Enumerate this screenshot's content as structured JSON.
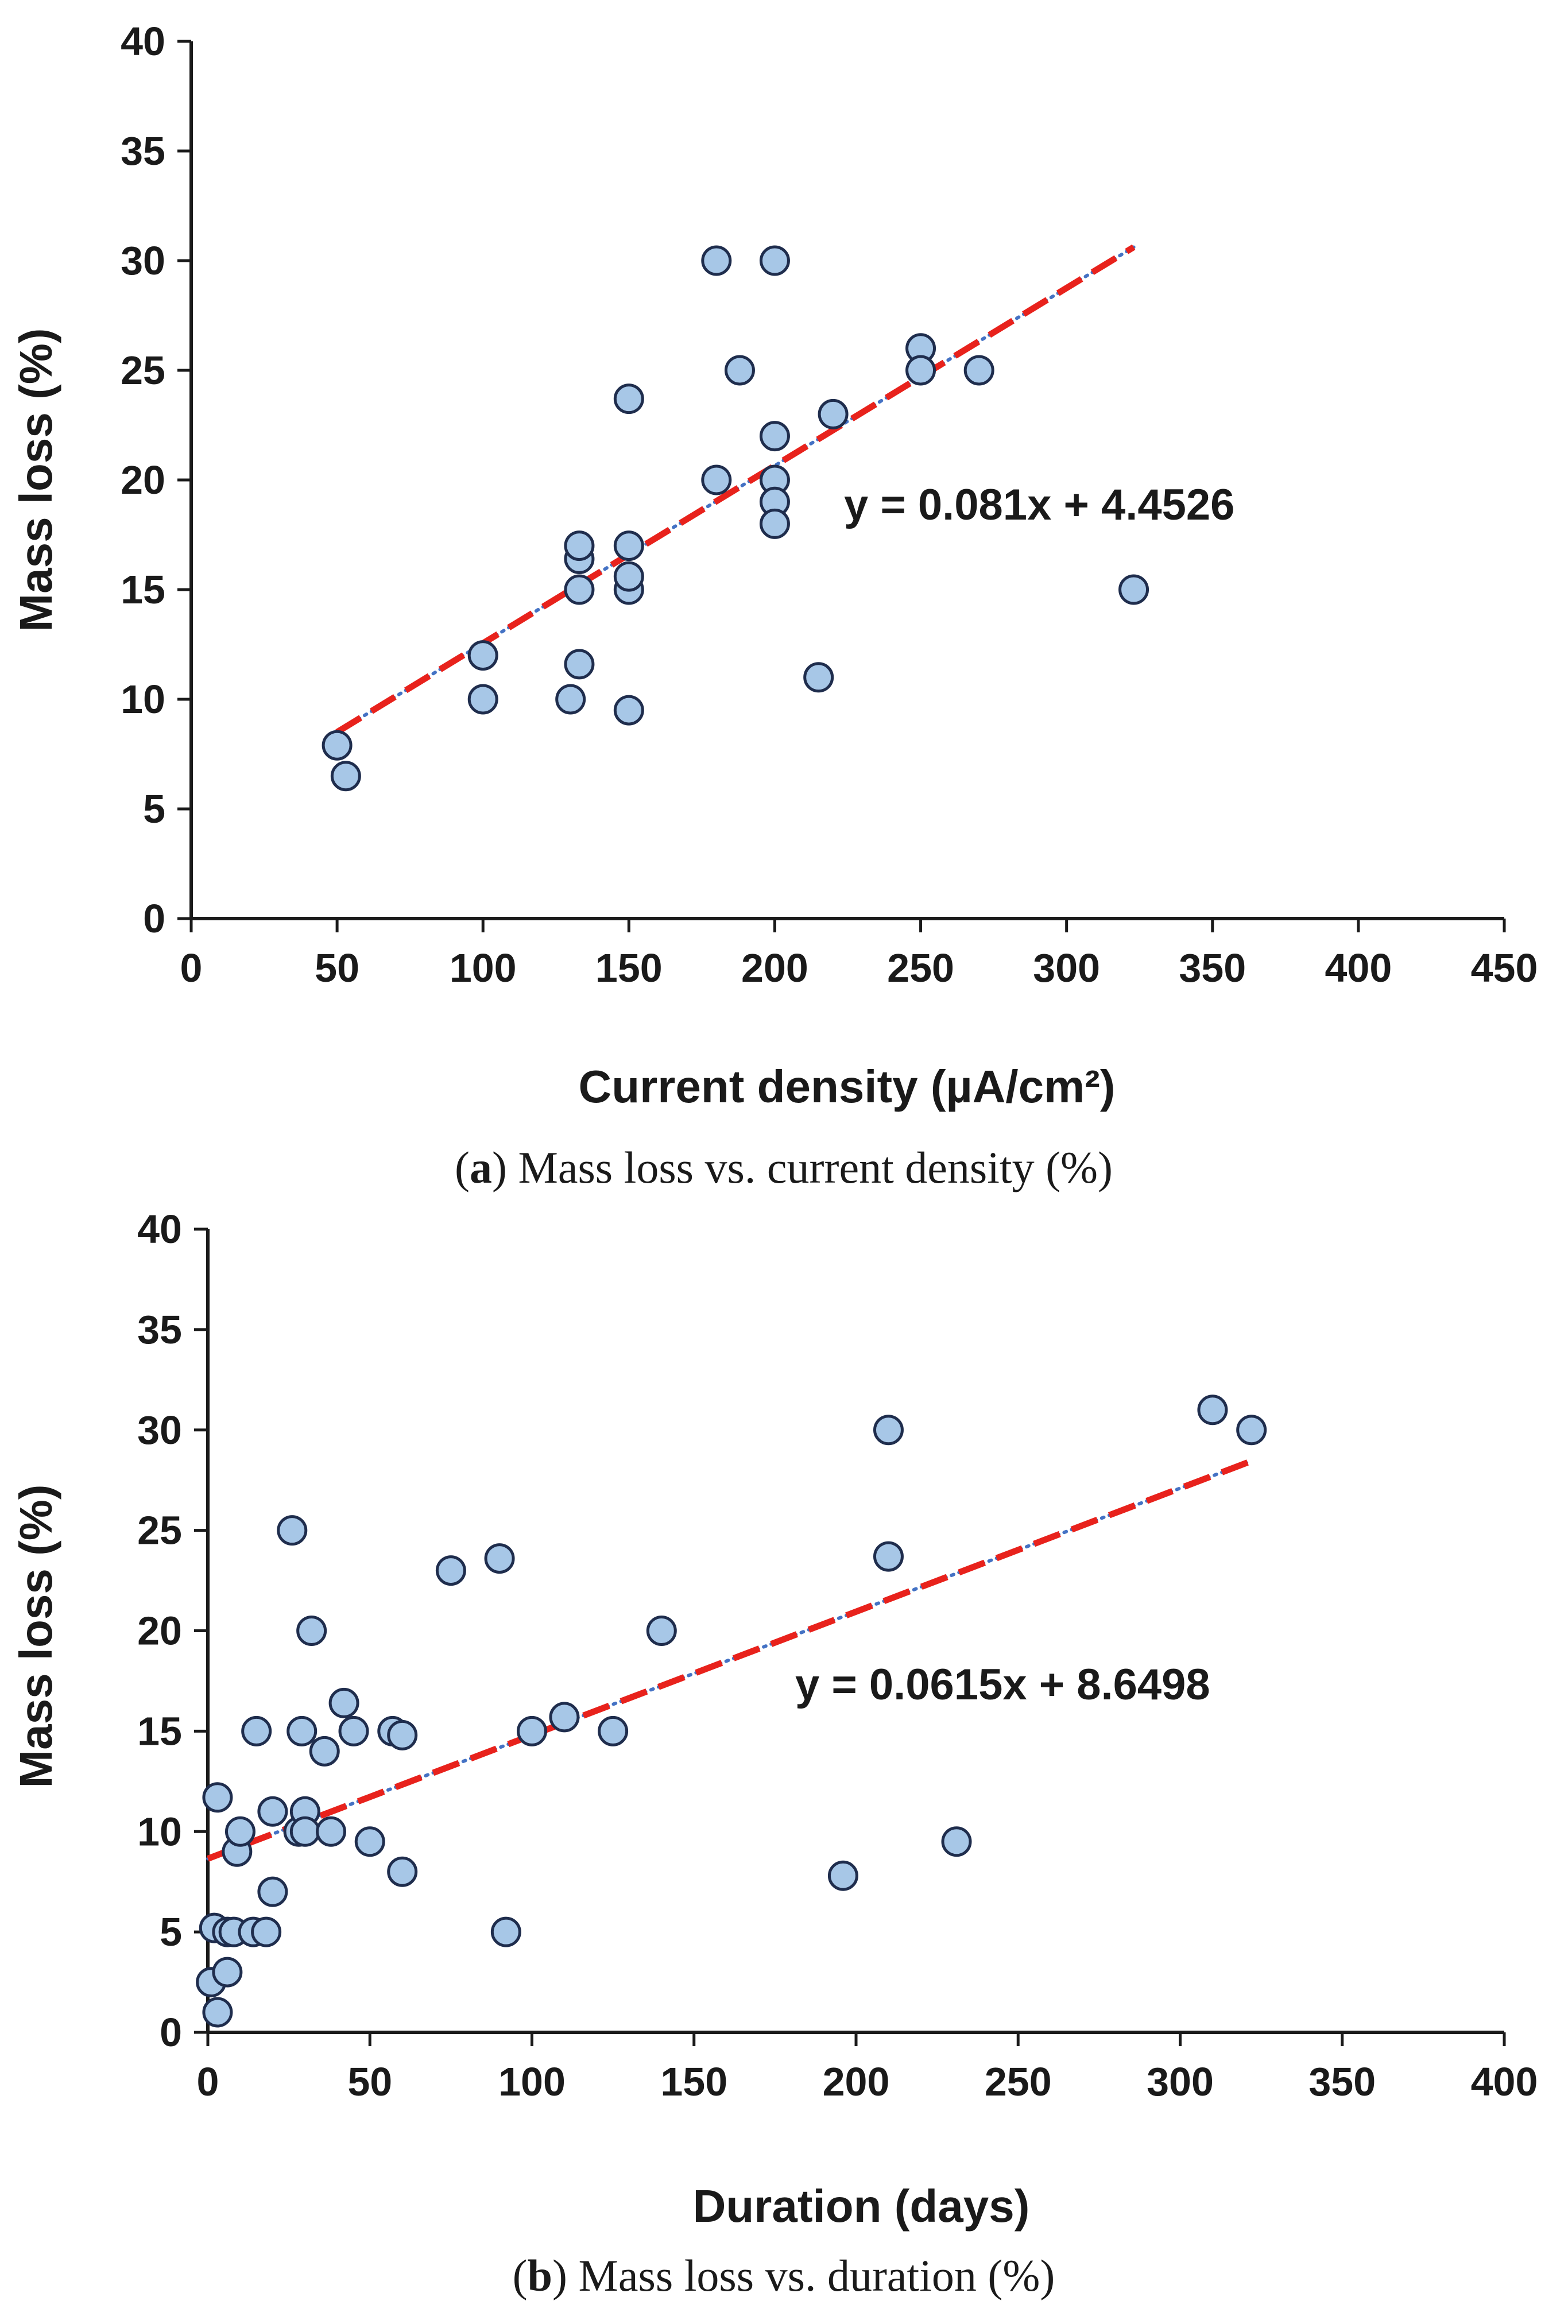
{
  "chart_data": [
    {
      "type": "scatter",
      "xlabel": "Current density (µA/cm²)",
      "ylabel": "Mass loss (%)",
      "xlim": [
        0,
        450
      ],
      "ylim": [
        0,
        40
      ],
      "xticks": [
        0,
        50,
        100,
        150,
        200,
        250,
        300,
        350,
        400,
        450
      ],
      "yticks": [
        0,
        5,
        10,
        15,
        20,
        25,
        30,
        35,
        40
      ],
      "points": [
        {
          "x": 50,
          "y": 7.9
        },
        {
          "x": 53,
          "y": 6.5
        },
        {
          "x": 100,
          "y": 12
        },
        {
          "x": 100,
          "y": 10
        },
        {
          "x": 130,
          "y": 10
        },
        {
          "x": 133,
          "y": 11.6
        },
        {
          "x": 133,
          "y": 15
        },
        {
          "x": 133,
          "y": 16.4
        },
        {
          "x": 133,
          "y": 17
        },
        {
          "x": 150,
          "y": 9.5
        },
        {
          "x": 150,
          "y": 15
        },
        {
          "x": 150,
          "y": 15.6
        },
        {
          "x": 150,
          "y": 17
        },
        {
          "x": 150,
          "y": 23.7
        },
        {
          "x": 180,
          "y": 30
        },
        {
          "x": 180,
          "y": 20
        },
        {
          "x": 188,
          "y": 25
        },
        {
          "x": 200,
          "y": 30
        },
        {
          "x": 200,
          "y": 22
        },
        {
          "x": 200,
          "y": 20
        },
        {
          "x": 200,
          "y": 19
        },
        {
          "x": 200,
          "y": 18
        },
        {
          "x": 215,
          "y": 11
        },
        {
          "x": 220,
          "y": 23
        },
        {
          "x": 250,
          "y": 26
        },
        {
          "x": 250,
          "y": 25
        },
        {
          "x": 270,
          "y": 25
        },
        {
          "x": 323,
          "y": 15
        }
      ],
      "trendline": {
        "slope": 0.081,
        "intercept": 4.4526,
        "x_start": 50,
        "x_end": 323
      },
      "equation": "y = 0.081x + 4.4526",
      "caption_letter": "a",
      "caption_text": "Mass loss vs. current density (%)"
    },
    {
      "type": "scatter",
      "xlabel": "Duration (days)",
      "ylabel": "Mass loss (%)",
      "xlim": [
        0,
        400
      ],
      "ylim": [
        0,
        40
      ],
      "xticks": [
        0,
        50,
        100,
        150,
        200,
        250,
        300,
        350,
        400
      ],
      "yticks": [
        0,
        5,
        10,
        15,
        20,
        25,
        30,
        35,
        40
      ],
      "points": [
        {
          "x": 1,
          "y": 2.5
        },
        {
          "x": 2,
          "y": 5.2
        },
        {
          "x": 3,
          "y": 1
        },
        {
          "x": 3,
          "y": 11.7
        },
        {
          "x": 6,
          "y": 3
        },
        {
          "x": 6,
          "y": 5
        },
        {
          "x": 8,
          "y": 5
        },
        {
          "x": 9,
          "y": 9
        },
        {
          "x": 10,
          "y": 10
        },
        {
          "x": 14,
          "y": 5
        },
        {
          "x": 15,
          "y": 15
        },
        {
          "x": 18,
          "y": 5
        },
        {
          "x": 20,
          "y": 7
        },
        {
          "x": 20,
          "y": 11
        },
        {
          "x": 26,
          "y": 25
        },
        {
          "x": 28,
          "y": 10
        },
        {
          "x": 29,
          "y": 15
        },
        {
          "x": 30,
          "y": 11
        },
        {
          "x": 30,
          "y": 10
        },
        {
          "x": 32,
          "y": 20
        },
        {
          "x": 36,
          "y": 14
        },
        {
          "x": 38,
          "y": 10
        },
        {
          "x": 42,
          "y": 16.4
        },
        {
          "x": 45,
          "y": 15
        },
        {
          "x": 50,
          "y": 9.5
        },
        {
          "x": 57,
          "y": 15
        },
        {
          "x": 60,
          "y": 14.8
        },
        {
          "x": 60,
          "y": 8
        },
        {
          "x": 75,
          "y": 23
        },
        {
          "x": 90,
          "y": 23.6
        },
        {
          "x": 92,
          "y": 5
        },
        {
          "x": 100,
          "y": 15
        },
        {
          "x": 110,
          "y": 15.7
        },
        {
          "x": 125,
          "y": 15
        },
        {
          "x": 140,
          "y": 20
        },
        {
          "x": 196,
          "y": 7.8
        },
        {
          "x": 210,
          "y": 30
        },
        {
          "x": 210,
          "y": 23.7
        },
        {
          "x": 231,
          "y": 9.5
        },
        {
          "x": 310,
          "y": 31
        },
        {
          "x": 322,
          "y": 30
        }
      ],
      "trendline": {
        "slope": 0.0615,
        "intercept": 8.6498,
        "x_start": 0,
        "x_end": 322
      },
      "equation": "y = 0.0615x + 8.6498",
      "caption_letter": "b",
      "caption_text": "Mass loss vs. duration (%)"
    }
  ],
  "colors": {
    "marker_fill": "#a7c7e7",
    "marker_edge": "#1f2d4d",
    "trend_dash": "#e8221c",
    "trend_dot": "#4472c4",
    "axis": "#1a1a1a"
  }
}
